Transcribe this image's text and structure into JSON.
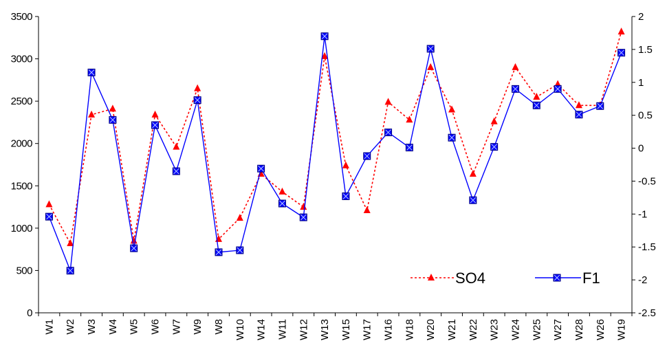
{
  "chart_data": {
    "type": "line",
    "categories": [
      "W1",
      "W2",
      "W3",
      "W4",
      "W5",
      "W6",
      "W7",
      "W9",
      "W8",
      "W10",
      "W14",
      "W11",
      "W12",
      "W13",
      "W15",
      "W17",
      "W16",
      "W18",
      "W20",
      "W21",
      "W22",
      "W23",
      "W24",
      "W25",
      "W27",
      "W28",
      "W26",
      "W19"
    ],
    "series": [
      {
        "name": "SO4",
        "axis": "left",
        "color": "#ff0000",
        "line_style": "dotted",
        "marker": "triangle",
        "values": [
          1280,
          820,
          2340,
          2410,
          850,
          2340,
          1960,
          2650,
          870,
          1120,
          1640,
          1430,
          1250,
          3030,
          1740,
          1210,
          2490,
          2280,
          2900,
          2400,
          1640,
          2260,
          2900,
          2550,
          2700,
          2450,
          2450,
          3320
        ]
      },
      {
        "name": "F1",
        "axis": "right",
        "color": "#0000ff",
        "line_style": "solid",
        "marker": "square",
        "values": [
          -1.04,
          -1.86,
          1.15,
          0.43,
          -1.52,
          0.35,
          -0.35,
          0.73,
          -1.58,
          -1.55,
          -0.31,
          -0.84,
          -1.05,
          1.7,
          -0.73,
          -0.12,
          0.24,
          0.01,
          1.51,
          0.16,
          -0.79,
          0.02,
          0.9,
          0.65,
          0.9,
          0.51,
          0.64,
          1.45
        ]
      }
    ],
    "y_left": {
      "ylim": [
        0,
        3500
      ],
      "ticks": [
        "0",
        "500",
        "1000",
        "1500",
        "2000",
        "2500",
        "3000",
        "3500"
      ]
    },
    "y_right": {
      "ylim": [
        -2.5,
        2
      ],
      "ticks": [
        "-2.5",
        "-2",
        "-1.5",
        "-1",
        "-0.5",
        "0",
        "0.5",
        "1",
        "1.5",
        "2"
      ]
    },
    "legend": {
      "placement": "bottom-right",
      "entries": [
        "SO4",
        "F1"
      ]
    },
    "grid": false
  }
}
